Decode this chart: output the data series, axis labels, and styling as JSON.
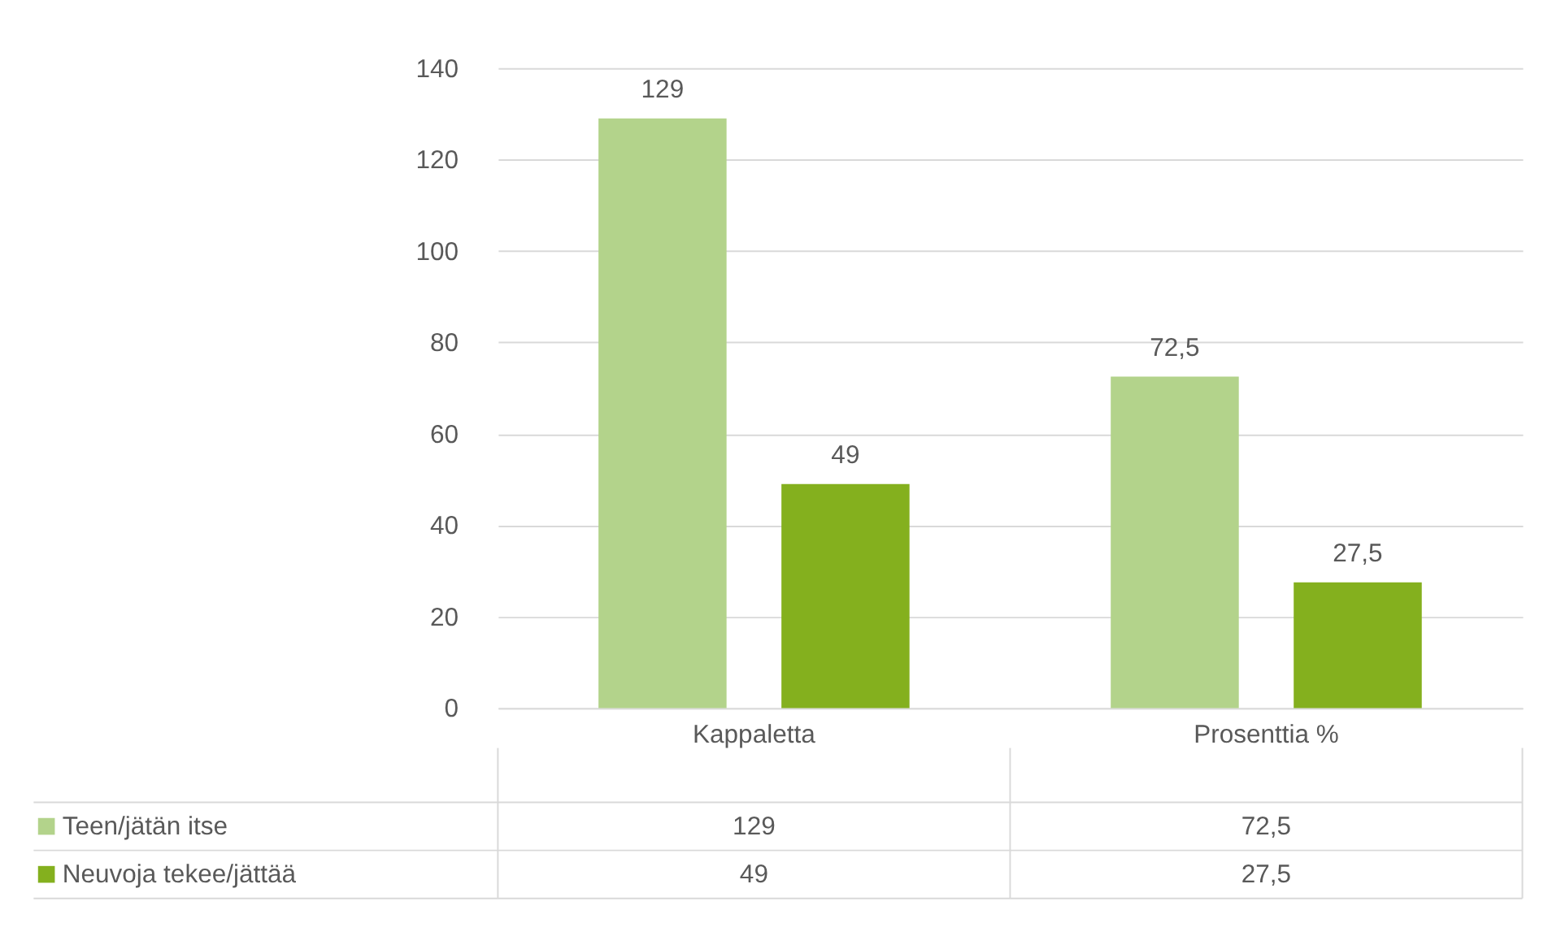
{
  "chart_data": {
    "type": "bar",
    "categories": [
      "Kappaletta",
      "Prosenttia %"
    ],
    "series": [
      {
        "name": "Teen/jätän itse",
        "color": "#b3d38b",
        "values": [
          129,
          72.5
        ],
        "value_labels": [
          "129",
          "72,5"
        ]
      },
      {
        "name": "Neuvoja tekee/jättää",
        "color": "#84b01e",
        "values": [
          49,
          27.5
        ],
        "value_labels": [
          "49",
          "27,5"
        ]
      }
    ],
    "ylim": [
      0,
      140
    ],
    "yticks": [
      0,
      20,
      40,
      60,
      80,
      100,
      120,
      140
    ],
    "grid": "y",
    "legend": "bottom"
  }
}
